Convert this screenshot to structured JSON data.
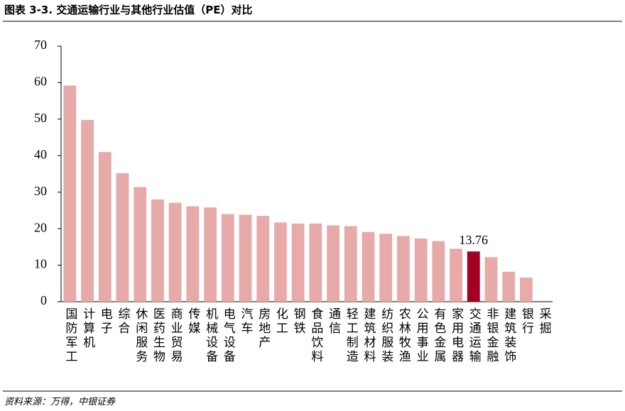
{
  "chart_data": {
    "type": "bar",
    "title": "图表 3-3. 交通运输行业与其他行业估值（PE）对比",
    "source": "资料来源：万得，中银证券",
    "categories": [
      "国防军工",
      "计算机",
      "电子",
      "综合",
      "休闲服务",
      "医药生物",
      "商业贸易",
      "传媒",
      "机械设备",
      "电气设备",
      "汽车",
      "房地产",
      "化工",
      "钢铁",
      "食品饮料",
      "通信",
      "轻工制造",
      "建筑材料",
      "纺织服装",
      "农林牧渔",
      "公用事业",
      "有色金属",
      "家用电器",
      "交通运输",
      "非银金融",
      "建筑装饰",
      "银行",
      "采掘"
    ],
    "values": [
      59.2,
      49.8,
      41.0,
      35.2,
      31.4,
      28.0,
      27.1,
      26.1,
      25.8,
      24.0,
      23.8,
      23.5,
      21.7,
      21.4,
      21.4,
      20.9,
      20.7,
      19.1,
      18.6,
      18.0,
      17.3,
      16.6,
      14.5,
      13.76,
      12.2,
      8.2,
      6.6,
      null
    ],
    "value_labels": [
      null,
      null,
      null,
      null,
      null,
      null,
      null,
      null,
      null,
      null,
      null,
      null,
      null,
      null,
      null,
      null,
      null,
      null,
      null,
      null,
      null,
      null,
      null,
      "13.76",
      null,
      null,
      null,
      null
    ],
    "colors": [
      "#e8a9a9",
      "#e8a9a9",
      "#e8a9a9",
      "#e8a9a9",
      "#e8a9a9",
      "#e8a9a9",
      "#e8a9a9",
      "#e8a9a9",
      "#e8a9a9",
      "#e8a9a9",
      "#e8a9a9",
      "#e8a9a9",
      "#e8a9a9",
      "#e8a9a9",
      "#e8a9a9",
      "#e8a9a9",
      "#e8a9a9",
      "#e8a9a9",
      "#e8a9a9",
      "#e8a9a9",
      "#e8a9a9",
      "#e8a9a9",
      "#e8a9a9",
      "#a50021",
      "#e8a9a9",
      "#e8a9a9",
      "#e8a9a9",
      "#e8a9a9"
    ],
    "ylim": [
      0,
      70
    ],
    "yticks": [
      0,
      10,
      20,
      30,
      40,
      50,
      60,
      70
    ],
    "grid": false
  }
}
